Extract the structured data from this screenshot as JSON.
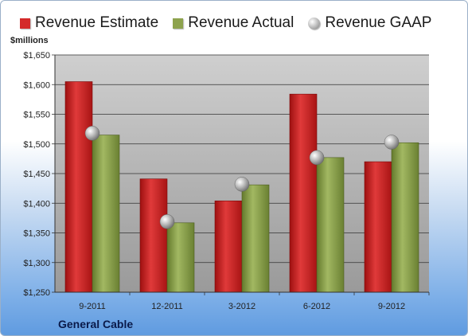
{
  "chart_data": {
    "type": "bar",
    "ylabel": "$millions",
    "ylim": [
      1250,
      1650
    ],
    "yticks": [
      1250,
      1300,
      1350,
      1400,
      1450,
      1500,
      1550,
      1600,
      1650
    ],
    "ytick_labels": [
      "$1,250",
      "$1,300",
      "$1,350",
      "$1,400",
      "$1,450",
      "$1,500",
      "$1,550",
      "$1,600",
      "$1,650"
    ],
    "categories": [
      "9-2011",
      "12-2011",
      "3-2012",
      "6-2012",
      "9-2012"
    ],
    "series": [
      {
        "name": "Revenue Estimate",
        "type": "bar",
        "color": "#d42a2a",
        "values": [
          1605,
          1441,
          1404,
          1584,
          1470
        ]
      },
      {
        "name": "Revenue Actual",
        "type": "bar",
        "color": "#8ea34e",
        "values": [
          1515,
          1367,
          1431,
          1477,
          1502
        ]
      },
      {
        "name": "Revenue GAAP",
        "type": "marker",
        "color": "#b8b8b8",
        "values": [
          1518,
          1369,
          1432,
          1477,
          1503
        ]
      }
    ],
    "legend_position": "top",
    "grid": true,
    "plot_background": "#c0c0c0"
  },
  "footer": {
    "company": "General Cable"
  }
}
